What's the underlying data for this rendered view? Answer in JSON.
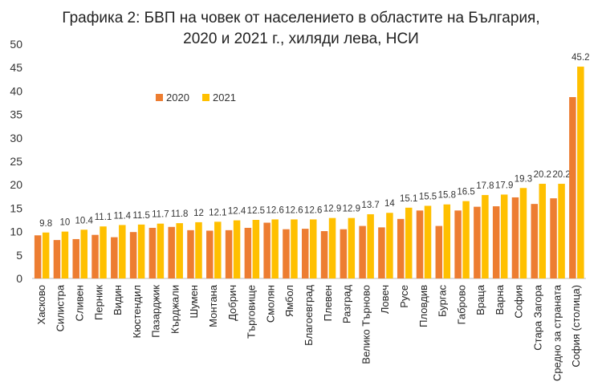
{
  "chart_data": {
    "type": "bar",
    "title_line1": "Графика 2: БВП на човек от населението в областите на България,",
    "title_line2": "2020 и 2021 г., хиляди лева,  НСИ",
    "xlabel": "",
    "ylabel": "",
    "ylim": [
      0,
      50
    ],
    "yticks": [
      0,
      5,
      10,
      15,
      20,
      25,
      30,
      35,
      40,
      45,
      50
    ],
    "grid": false,
    "legend_position": "top-left",
    "categories": [
      "Хасково",
      "Силистра",
      "Сливен",
      "Перник",
      "Видин",
      "Кюстендил",
      "Пазарджик",
      "Кърджали",
      "Шумен",
      "Монтана",
      "Добрич",
      "Търговище",
      "Смолян",
      "Ямбол",
      "Благоевград",
      "Плевен",
      "Разград",
      "Велико Търново",
      "Ловеч",
      "Русе",
      "Пловдив",
      "Бургас",
      "Габрово",
      "Враца",
      "Варна",
      "София",
      "Стара Загора",
      "Средно за страната",
      "София (столица)"
    ],
    "series": [
      {
        "name": "2020",
        "color": "#ED7D31",
        "labeled": false,
        "values": [
          9.2,
          8.2,
          8.4,
          9.3,
          8.8,
          9.9,
          10.8,
          11.0,
          10.3,
          10.2,
          10.3,
          10.8,
          11.9,
          10.5,
          10.6,
          10.1,
          10.5,
          11.2,
          10.9,
          12.7,
          14.5,
          11.2,
          14.5,
          15.3,
          15.4,
          17.3,
          15.9,
          17.1,
          38.7
        ]
      },
      {
        "name": "2021",
        "color": "#FFC000",
        "labeled": true,
        "values": [
          9.8,
          10,
          10.4,
          11.1,
          11.4,
          11.5,
          11.7,
          11.8,
          12,
          12.1,
          12.4,
          12.5,
          12.6,
          12.6,
          12.6,
          12.9,
          12.9,
          13.7,
          14,
          15.1,
          15.5,
          15.8,
          16.5,
          17.8,
          17.9,
          19.3,
          20.2,
          20.2,
          45.2
        ]
      }
    ]
  }
}
